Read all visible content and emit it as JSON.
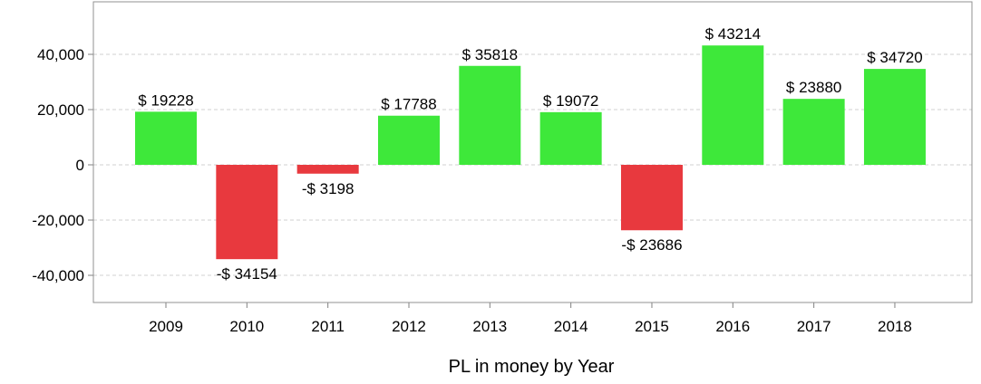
{
  "chart_data": {
    "type": "bar",
    "title": "",
    "xlabel": "PL in money by Year",
    "ylabel": "",
    "categories": [
      "2009",
      "2010",
      "2011",
      "2012",
      "2013",
      "2014",
      "2015",
      "2016",
      "2017",
      "2018"
    ],
    "values": [
      19228,
      -34154,
      -3198,
      17788,
      35818,
      19072,
      -23686,
      43214,
      23880,
      34720
    ],
    "data_labels": [
      "$ 19228",
      "-$ 34154",
      "-$ 3198",
      "$ 17788",
      "$ 35818",
      "$ 19072",
      "-$ 23686",
      "$ 43214",
      "$ 23880",
      "$ 34720"
    ],
    "y_ticks": [
      40000,
      20000,
      0,
      -20000,
      -40000
    ],
    "y_tick_labels": [
      "40,000",
      "20,000",
      "0",
      "-20,000",
      "-40,000"
    ],
    "grid": true,
    "legend": "none",
    "colors": {
      "positive": "#3ee83a",
      "negative": "#e8393e"
    }
  }
}
